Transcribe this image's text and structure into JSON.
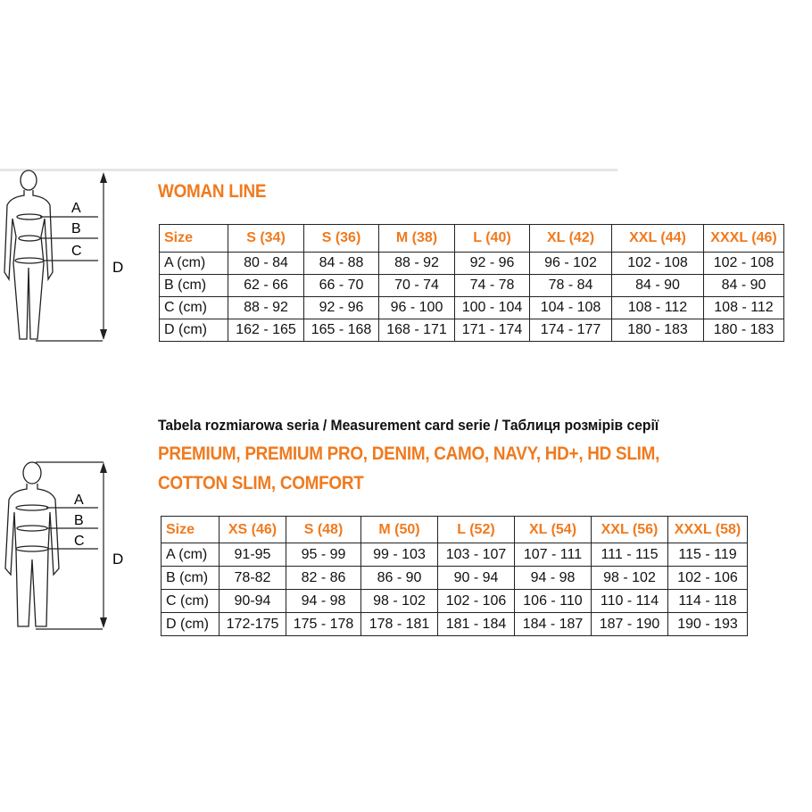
{
  "woman": {
    "title": "WOMAN LINE",
    "figure_labels": [
      "A",
      "B",
      "C",
      "D"
    ],
    "headers": [
      "Size",
      "S (34)",
      "S (36)",
      "M (38)",
      "L (40)",
      "XL (42)",
      "XXL (44)",
      "XXXL (46)"
    ],
    "rows": [
      [
        "A (cm)",
        "80 - 84",
        "84 - 88",
        "88 - 92",
        "92 - 96",
        "96 - 102",
        "102 - 108",
        "102 - 108"
      ],
      [
        "B (cm)",
        "62 - 66",
        "66 - 70",
        "70 - 74",
        "74 - 78",
        "78 - 84",
        "84 - 90",
        "84 - 90"
      ],
      [
        "C (cm)",
        "88 - 92",
        "92 - 96",
        "96 - 100",
        "100 - 104",
        "104 - 108",
        "108 - 112",
        "108 - 112"
      ],
      [
        "D (cm)",
        "162 - 165",
        "165 - 168",
        "168 - 171",
        "171 - 174",
        "174 - 177",
        "180 - 183",
        "180 - 183"
      ]
    ]
  },
  "premium": {
    "subtitle": "Tabela rozmiarowa seria / Measurement card serie / Таблиця розмірів серії",
    "title_line1": "PREMIUM, PREMIUM PRO, DENIM, CAMO, NAVY, HD+, HD SLIM,",
    "title_line2": "COTTON SLIM, COMFORT",
    "figure_labels": [
      "A",
      "B",
      "C",
      "D"
    ],
    "headers": [
      "Size",
      "XS (46)",
      "S (48)",
      "M (50)",
      "L (52)",
      "XL (54)",
      "XXL (56)",
      "XXXL (58)"
    ],
    "rows": [
      [
        "A (cm)",
        "91-95",
        "95 - 99",
        "99 - 103",
        "103 - 107",
        "107 - 111",
        "111 - 115",
        "115 - 119"
      ],
      [
        "B (cm)",
        "78-82",
        "82 - 86",
        "86 - 90",
        "90 - 94",
        "94 - 98",
        "98 - 102",
        "102 - 106"
      ],
      [
        "C (cm)",
        "90-94",
        "94 - 98",
        "98 - 102",
        "102 - 106",
        "106 - 110",
        "110 - 114",
        "114 - 118"
      ],
      [
        "D (cm)",
        "172-175",
        "175 - 178",
        "178 - 181",
        "181 - 184",
        "184 - 187",
        "187 - 190",
        "190 - 193"
      ]
    ]
  },
  "colors": {
    "accent": "#f07a1e",
    "border": "#222222"
  }
}
